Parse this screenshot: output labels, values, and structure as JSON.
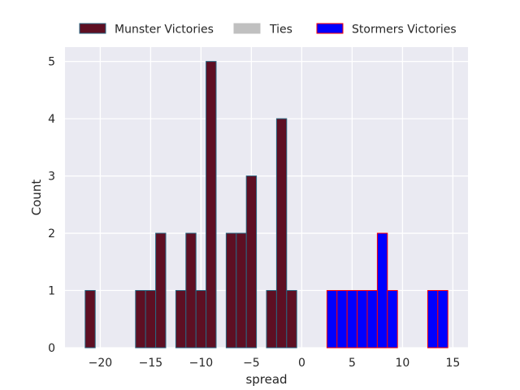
{
  "chart_data": {
    "type": "bar",
    "xlabel": "spread",
    "ylabel": "Count",
    "xlim": [
      -23.5,
      16.5
    ],
    "ylim": [
      0,
      5.25
    ],
    "bin_width": 1,
    "x_ticks": [
      -20,
      -15,
      -10,
      -5,
      0,
      5,
      10,
      15
    ],
    "x_tick_labels": [
      "−20",
      "−15",
      "−10",
      "−5",
      "0",
      "5",
      "10",
      "15"
    ],
    "y_ticks": [
      0,
      1,
      2,
      3,
      4,
      5
    ],
    "y_tick_labels": [
      "0",
      "1",
      "2",
      "3",
      "4",
      "5"
    ],
    "grid": true,
    "legend_position": "top-center",
    "colors": {
      "background": "#eaeaf2",
      "grid": "#ffffff",
      "text": "#262626"
    },
    "series": [
      {
        "name": "Munster Victories",
        "fill": "#5e0f23",
        "edge": "#2a6680",
        "bins": [
          {
            "x": -21,
            "count": 1
          },
          {
            "x": -16,
            "count": 1
          },
          {
            "x": -15,
            "count": 1
          },
          {
            "x": -14,
            "count": 2
          },
          {
            "x": -12,
            "count": 1
          },
          {
            "x": -11,
            "count": 2
          },
          {
            "x": -10,
            "count": 1
          },
          {
            "x": -9,
            "count": 5
          },
          {
            "x": -7,
            "count": 2
          },
          {
            "x": -6,
            "count": 2
          },
          {
            "x": -5,
            "count": 3
          },
          {
            "x": -3,
            "count": 1
          },
          {
            "x": -2,
            "count": 4
          },
          {
            "x": -1,
            "count": 1
          }
        ]
      },
      {
        "name": "Ties",
        "fill": "#c0c0c0",
        "edge": "#c0c0c0",
        "bins": []
      },
      {
        "name": "Stormers Victories",
        "fill": "#0000ff",
        "edge": "#ff0000",
        "bins": [
          {
            "x": 3,
            "count": 1
          },
          {
            "x": 4,
            "count": 1
          },
          {
            "x": 5,
            "count": 1
          },
          {
            "x": 6,
            "count": 1
          },
          {
            "x": 7,
            "count": 1
          },
          {
            "x": 8,
            "count": 2
          },
          {
            "x": 9,
            "count": 1
          },
          {
            "x": 13,
            "count": 1
          },
          {
            "x": 14,
            "count": 1
          }
        ]
      }
    ]
  }
}
